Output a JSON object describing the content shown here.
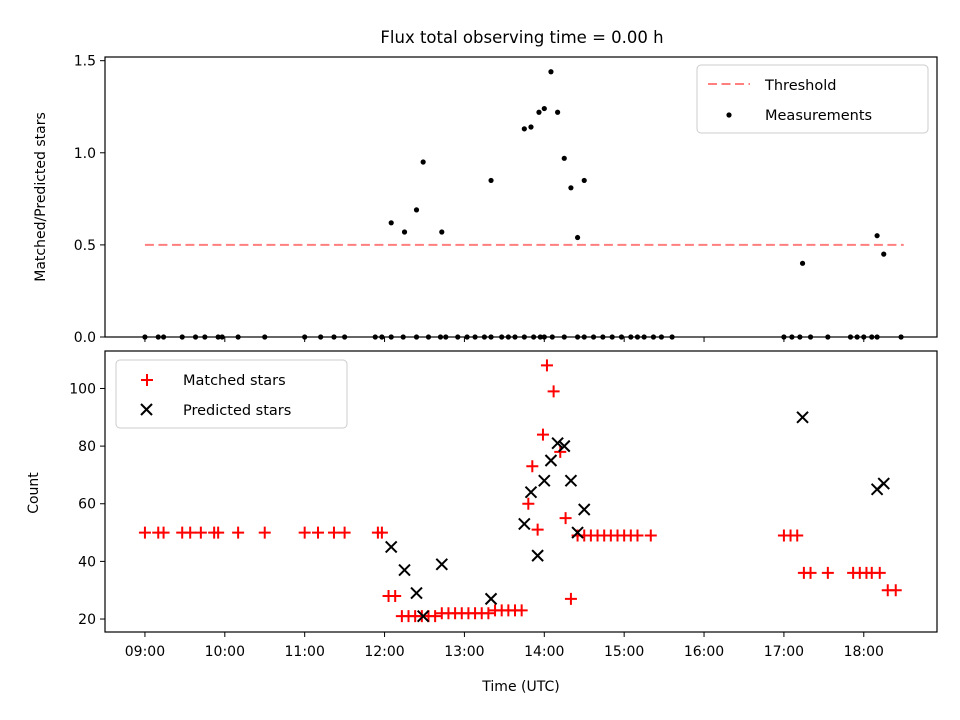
{
  "chart_data": [
    {
      "type": "scatter",
      "title": "Flux total observing time = 0.00 h",
      "xlabel": "",
      "ylabel": "Matched/Predicted stars",
      "xlim": [
        "08:30",
        "18:55"
      ],
      "ylim": [
        0,
        1.52
      ],
      "yticks": [
        "0.0",
        "0.5",
        "1.0",
        "1.5"
      ],
      "legend_position": "top-right",
      "threshold": {
        "name": "Threshold",
        "value": 0.5,
        "x": [
          "09:00",
          "18:30"
        ],
        "color": "#ff7f7f"
      },
      "series": [
        {
          "name": "Measurements",
          "color": "#000000",
          "points": [
            [
              "09:00",
              0
            ],
            [
              "09:10",
              0
            ],
            [
              "09:14",
              0
            ],
            [
              "09:28",
              0
            ],
            [
              "09:38",
              0
            ],
            [
              "09:45",
              0
            ],
            [
              "09:55",
              0
            ],
            [
              "09:58",
              0
            ],
            [
              "10:10",
              0
            ],
            [
              "10:30",
              0
            ],
            [
              "11:00",
              0
            ],
            [
              "11:12",
              0
            ],
            [
              "11:22",
              0
            ],
            [
              "11:30",
              0
            ],
            [
              "11:53",
              0
            ],
            [
              "11:58",
              0
            ],
            [
              "12:05",
              0
            ],
            [
              "12:14",
              0
            ],
            [
              "12:24",
              0
            ],
            [
              "12:33",
              0
            ],
            [
              "12:42",
              0
            ],
            [
              "12:46",
              0
            ],
            [
              "12:55",
              0
            ],
            [
              "13:02",
              0
            ],
            [
              "13:08",
              0
            ],
            [
              "13:15",
              0
            ],
            [
              "13:20",
              0
            ],
            [
              "13:28",
              0
            ],
            [
              "13:33",
              0
            ],
            [
              "13:38",
              0
            ],
            [
              "13:45",
              0
            ],
            [
              "13:52",
              0
            ],
            [
              "13:57",
              0
            ],
            [
              "14:00",
              0
            ],
            [
              "14:06",
              0
            ],
            [
              "14:15",
              0
            ],
            [
              "14:25",
              0
            ],
            [
              "14:30",
              0
            ],
            [
              "14:37",
              0
            ],
            [
              "14:44",
              0
            ],
            [
              "14:51",
              0
            ],
            [
              "14:58",
              0
            ],
            [
              "15:05",
              0
            ],
            [
              "15:10",
              0
            ],
            [
              "15:15",
              0
            ],
            [
              "15:22",
              0
            ],
            [
              "15:28",
              0
            ],
            [
              "15:36",
              0
            ],
            [
              "17:00",
              0
            ],
            [
              "17:06",
              0
            ],
            [
              "17:12",
              0
            ],
            [
              "17:20",
              0
            ],
            [
              "17:33",
              0
            ],
            [
              "17:50",
              0
            ],
            [
              "17:55",
              0
            ],
            [
              "18:00",
              0
            ],
            [
              "18:06",
              0
            ],
            [
              "18:10",
              0
            ],
            [
              "18:28",
              0
            ],
            [
              "12:05",
              0.62
            ],
            [
              "12:15",
              0.57
            ],
            [
              "12:24",
              0.69
            ],
            [
              "12:29",
              0.95
            ],
            [
              "12:43",
              0.57
            ],
            [
              "13:20",
              0.85
            ],
            [
              "13:45",
              1.13
            ],
            [
              "13:50",
              1.14
            ],
            [
              "13:56",
              1.22
            ],
            [
              "14:00",
              1.24
            ],
            [
              "14:05",
              1.44
            ],
            [
              "14:10",
              1.22
            ],
            [
              "14:15",
              0.97
            ],
            [
              "14:20",
              0.81
            ],
            [
              "14:25",
              0.54
            ],
            [
              "14:30",
              0.85
            ],
            [
              "17:14",
              0.4
            ],
            [
              "18:10",
              0.55
            ],
            [
              "18:15",
              0.45
            ]
          ]
        }
      ]
    },
    {
      "type": "scatter",
      "title": "",
      "xlabel": "Time (UTC)",
      "ylabel": "Count",
      "xlim": [
        "08:30",
        "18:55"
      ],
      "ylim": [
        15.5,
        113
      ],
      "yticks": [
        "20",
        "40",
        "60",
        "80",
        "100"
      ],
      "xticks": [
        "09:00",
        "10:00",
        "11:00",
        "12:00",
        "13:00",
        "14:00",
        "15:00",
        "16:00",
        "17:00",
        "18:00"
      ],
      "legend_position": "top-left",
      "series": [
        {
          "name": "Matched stars",
          "marker": "+",
          "color": "#ff0000",
          "points": [
            [
              "09:00",
              50
            ],
            [
              "09:10",
              50
            ],
            [
              "09:14",
              50
            ],
            [
              "09:28",
              50
            ],
            [
              "09:34",
              50
            ],
            [
              "09:42",
              50
            ],
            [
              "09:52",
              50
            ],
            [
              "09:55",
              50
            ],
            [
              "10:10",
              50
            ],
            [
              "10:30",
              50
            ],
            [
              "11:00",
              50
            ],
            [
              "11:10",
              50
            ],
            [
              "11:22",
              50
            ],
            [
              "11:30",
              50
            ],
            [
              "11:55",
              50
            ],
            [
              "11:58",
              50
            ],
            [
              "12:03",
              28
            ],
            [
              "12:08",
              28
            ],
            [
              "12:13",
              21
            ],
            [
              "12:18",
              21
            ],
            [
              "12:23",
              21
            ],
            [
              "12:28",
              21
            ],
            [
              "12:33",
              21
            ],
            [
              "12:38",
              21
            ],
            [
              "12:43",
              22
            ],
            [
              "12:48",
              22
            ],
            [
              "12:53",
              22
            ],
            [
              "12:58",
              22
            ],
            [
              "13:03",
              22
            ],
            [
              "13:08",
              22
            ],
            [
              "13:13",
              22
            ],
            [
              "13:18",
              22
            ],
            [
              "13:23",
              23
            ],
            [
              "13:28",
              23
            ],
            [
              "13:33",
              23
            ],
            [
              "13:38",
              23
            ],
            [
              "13:43",
              23
            ],
            [
              "13:48",
              60
            ],
            [
              "13:51",
              73
            ],
            [
              "13:55",
              51
            ],
            [
              "13:59",
              84
            ],
            [
              "14:02",
              108
            ],
            [
              "14:07",
              99
            ],
            [
              "14:12",
              78
            ],
            [
              "14:16",
              55
            ],
            [
              "14:20",
              27
            ],
            [
              "14:25",
              49
            ],
            [
              "14:30",
              49
            ],
            [
              "14:35",
              49
            ],
            [
              "14:40",
              49
            ],
            [
              "14:45",
              49
            ],
            [
              "14:50",
              49
            ],
            [
              "14:55",
              49
            ],
            [
              "15:00",
              49
            ],
            [
              "15:05",
              49
            ],
            [
              "15:10",
              49
            ],
            [
              "15:20",
              49
            ],
            [
              "17:00",
              49
            ],
            [
              "17:05",
              49
            ],
            [
              "17:10",
              49
            ],
            [
              "17:15",
              36
            ],
            [
              "17:20",
              36
            ],
            [
              "17:33",
              36
            ],
            [
              "17:52",
              36
            ],
            [
              "17:57",
              36
            ],
            [
              "18:02",
              36
            ],
            [
              "18:06",
              36
            ],
            [
              "18:12",
              36
            ],
            [
              "18:18",
              30
            ],
            [
              "18:24",
              30
            ]
          ]
        },
        {
          "name": "Predicted stars",
          "marker": "x",
          "color": "#000000",
          "points": [
            [
              "12:05",
              45
            ],
            [
              "12:15",
              37
            ],
            [
              "12:24",
              29
            ],
            [
              "12:29",
              21
            ],
            [
              "12:43",
              39
            ],
            [
              "13:20",
              27
            ],
            [
              "13:45",
              53
            ],
            [
              "13:50",
              64
            ],
            [
              "13:55",
              42
            ],
            [
              "14:00",
              68
            ],
            [
              "14:05",
              75
            ],
            [
              "14:10",
              81
            ],
            [
              "14:15",
              80
            ],
            [
              "14:20",
              68
            ],
            [
              "14:25",
              50
            ],
            [
              "14:30",
              58
            ],
            [
              "17:14",
              90
            ],
            [
              "18:10",
              65
            ],
            [
              "18:15",
              67
            ]
          ]
        }
      ]
    }
  ]
}
